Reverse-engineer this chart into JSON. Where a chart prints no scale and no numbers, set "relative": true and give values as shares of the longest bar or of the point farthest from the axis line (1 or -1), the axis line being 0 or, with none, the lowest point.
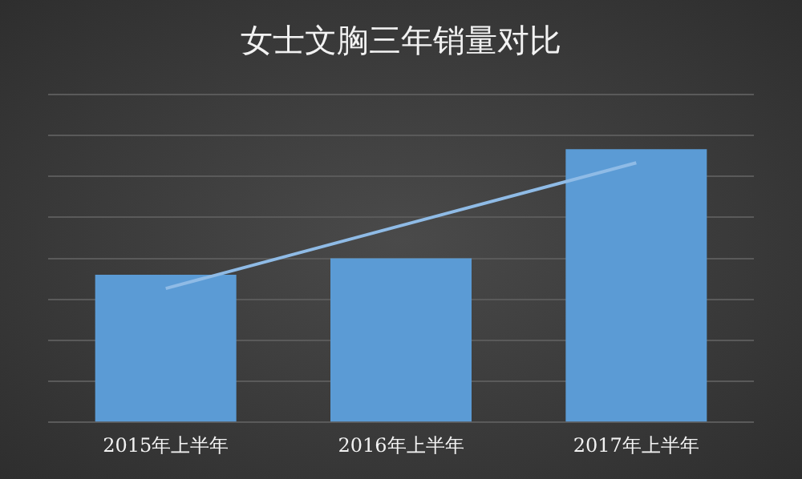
{
  "chart_data": {
    "type": "bar",
    "title": "女士文胸三年销量对比",
    "categories": [
      "2015年上半年",
      "2016年上半年",
      "2017年上半年"
    ],
    "relative": true,
    "grid": "y",
    "legend": false,
    "series": [
      {
        "color": "#5b9bd5",
        "values": [
          0.54,
          0.6,
          1
        ]
      },
      {
        "type": "line",
        "color": "#8fbbe6",
        "values": [
          0.49,
          0.72,
          0.95
        ]
      }
    ]
  }
}
